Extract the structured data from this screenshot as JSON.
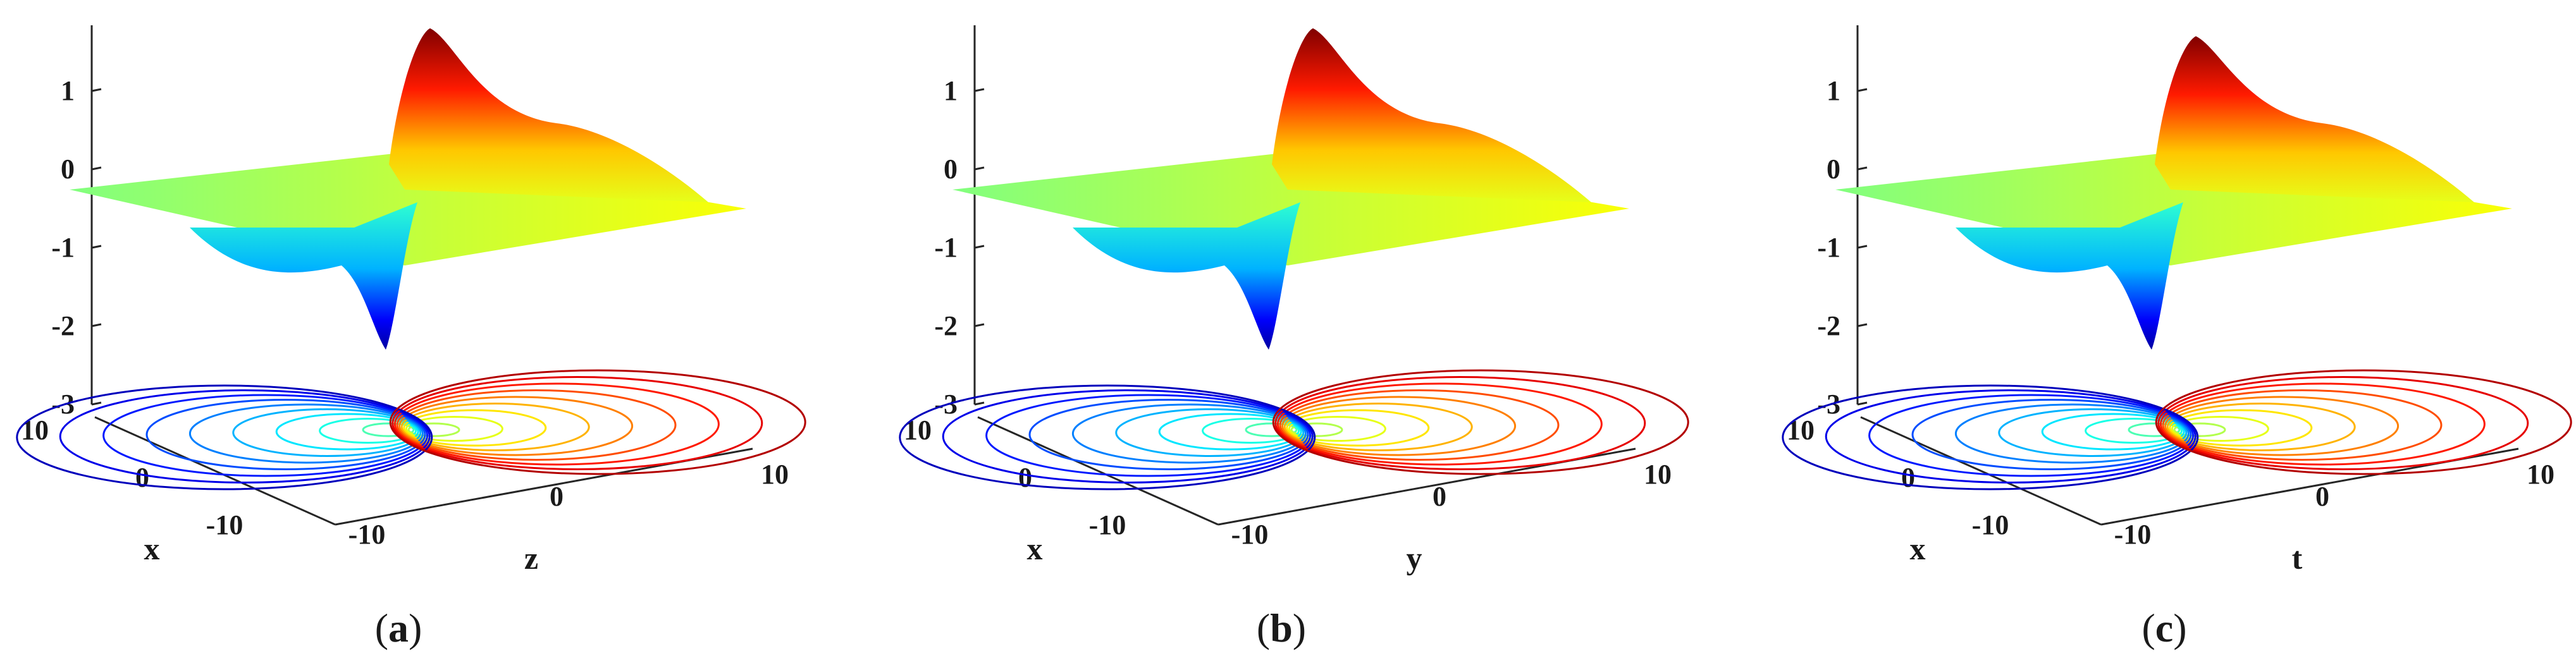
{
  "chart_data": [
    {
      "type": "surface",
      "caption_letter": "a",
      "xlabel": "x",
      "ylabel": "z",
      "zticks": [
        "1",
        "0",
        "-1",
        "-2",
        "-3"
      ],
      "xticks": [
        "10",
        "0",
        "-10"
      ],
      "yticks": [
        "-10",
        "0",
        "10"
      ],
      "xlim": [
        -10,
        10
      ],
      "ylim": [
        -10,
        10
      ],
      "zlim": [
        -3,
        2
      ],
      "z_max": 1.8,
      "z_min": -2.3,
      "colormap": "jet",
      "contour_projection": true
    },
    {
      "type": "surface",
      "caption_letter": "b",
      "xlabel": "x",
      "ylabel": "y",
      "zticks": [
        "1",
        "0",
        "-1",
        "-2",
        "-3"
      ],
      "xticks": [
        "10",
        "0",
        "-10"
      ],
      "yticks": [
        "-10",
        "0",
        "10"
      ],
      "xlim": [
        -10,
        10
      ],
      "ylim": [
        -10,
        10
      ],
      "zlim": [
        -3,
        2
      ],
      "z_max": 1.8,
      "z_min": -2.3,
      "colormap": "jet",
      "contour_projection": true
    },
    {
      "type": "surface",
      "caption_letter": "c",
      "xlabel": "x",
      "ylabel": "t",
      "zticks": [
        "1",
        "0",
        "-1",
        "-2",
        "-3"
      ],
      "xticks": [
        "10",
        "0",
        "-10"
      ],
      "yticks": [
        "-10",
        "0",
        "10"
      ],
      "xlim": [
        -10,
        10
      ],
      "ylim": [
        -10,
        10
      ],
      "zlim": [
        -3,
        2
      ],
      "z_max": 1.7,
      "z_min": -2.3,
      "colormap": "jet",
      "contour_projection": true
    }
  ]
}
